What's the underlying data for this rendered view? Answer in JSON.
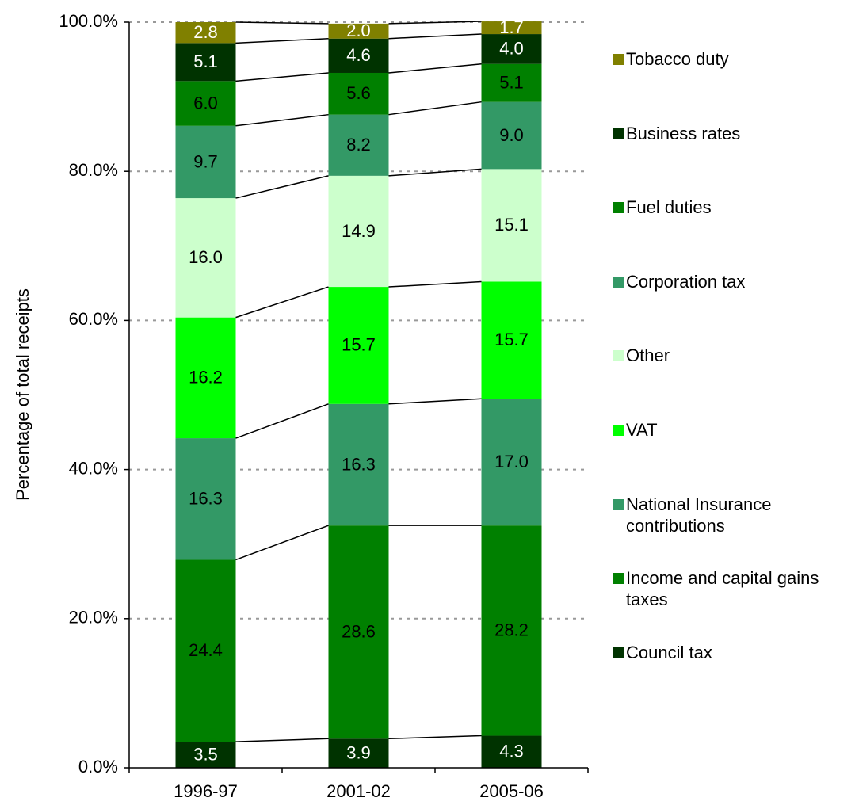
{
  "chart_data": {
    "type": "stacked_bar",
    "y_label": "Percentage of total receipts",
    "categories": [
      "1996-97",
      "2001-02",
      "2005-06"
    ],
    "ylim": [
      0,
      100
    ],
    "yticks": [
      {
        "value": 0,
        "label": "0.0%"
      },
      {
        "value": 20,
        "label": "20.0%"
      },
      {
        "value": 40,
        "label": "40.0%"
      },
      {
        "value": 60,
        "label": "60.0%"
      },
      {
        "value": 80,
        "label": "80.0%"
      },
      {
        "value": 100,
        "label": "100.0%"
      }
    ],
    "grid": true,
    "series_lines": true,
    "legend": "right",
    "series": [
      {
        "name": "Council tax",
        "color": "#003300",
        "label_color": "#ffffff",
        "values": [
          3.5,
          3.9,
          4.3
        ],
        "value_labels": [
          "3.5",
          "3.9",
          "4.3"
        ]
      },
      {
        "name": "Income and capital gains taxes",
        "color": "#008000",
        "label_color": "#000000",
        "values": [
          24.4,
          28.6,
          28.2
        ],
        "value_labels": [
          "24.4",
          "28.6",
          "28.2"
        ]
      },
      {
        "name": "National Insurance contributions",
        "color": "#339966",
        "label_color": "#000000",
        "values": [
          16.3,
          16.3,
          17.0
        ],
        "value_labels": [
          "16.3",
          "16.3",
          "17.0"
        ]
      },
      {
        "name": "VAT",
        "color": "#00ff00",
        "label_color": "#000000",
        "values": [
          16.2,
          15.7,
          15.7
        ],
        "value_labels": [
          "16.2",
          "15.7",
          "15.7"
        ]
      },
      {
        "name": "Other",
        "color": "#ccffcc",
        "label_color": "#000000",
        "values": [
          16.0,
          14.9,
          15.1
        ],
        "value_labels": [
          "16.0",
          "14.9",
          "15.1"
        ]
      },
      {
        "name": "Corporation tax",
        "color": "#339966",
        "label_color": "#000000",
        "values": [
          9.7,
          8.2,
          9.0
        ],
        "value_labels": [
          "9.7",
          "8.2",
          "9.0"
        ]
      },
      {
        "name": "Fuel duties",
        "color": "#008000",
        "label_color": "#000000",
        "values": [
          6.0,
          5.6,
          5.1
        ],
        "value_labels": [
          "6.0",
          "5.6",
          "5.1"
        ]
      },
      {
        "name": "Business rates",
        "color": "#003300",
        "label_color": "#ffffff",
        "values": [
          5.1,
          4.6,
          4.0
        ],
        "value_labels": [
          "5.1",
          "4.6",
          "4.0"
        ]
      },
      {
        "name": "Tobacco duty",
        "color": "#808000",
        "label_color": "#ffffff",
        "values": [
          2.8,
          2.0,
          1.7
        ],
        "value_labels": [
          "2.8",
          "2.0",
          "1.7"
        ]
      }
    ]
  }
}
